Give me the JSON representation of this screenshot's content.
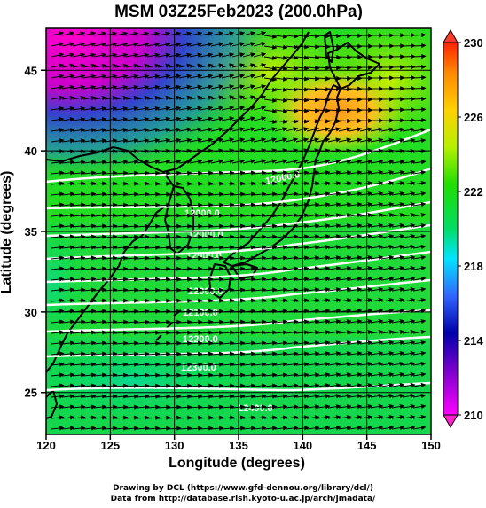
{
  "title": "MSM 03Z25Feb2023 (200.0hPa)",
  "xlabel": "Longitude (degrees)",
  "ylabel": "Latitude  (degrees)",
  "credits": {
    "line1": "Drawing by DCL (https://www.gfd-dennou.org/library/dcl/)",
    "line2": "Data from http://database.rish.kyoto-u.ac.jp/arch/jmadata/"
  },
  "chart_data": {
    "type": "heatmap",
    "xlim": [
      120,
      150
    ],
    "ylim": [
      22.4,
      47.6
    ],
    "xticks": [
      "120",
      "125",
      "130",
      "135",
      "140",
      "145",
      "150"
    ],
    "yticks": [
      "25",
      "30",
      "35",
      "40",
      "45"
    ],
    "colorbar": {
      "min": 210,
      "max": 230,
      "tick_labels": [
        "210",
        "214",
        "218",
        "222",
        "226",
        "230"
      ],
      "colors": [
        "#ff00ff",
        "#0000aa",
        "#3366ff",
        "#00e5ff",
        "#00dd33",
        "#33dd00",
        "#c8f000",
        "#ffd000",
        "#ff8800",
        "#ff3300"
      ]
    },
    "contours": [
      {
        "label": "12000.0",
        "lat": 40.7
      },
      {
        "label": "12000.0",
        "lat": 38.3
      },
      {
        "label": "12000.0",
        "lat": 36.6
      },
      {
        "label": "12000.0",
        "lat": 34.6
      },
      {
        "label": "12000.0",
        "lat": 33.0
      },
      {
        "label": "12100.0",
        "lat": 31.4
      },
      {
        "label": "12200.0",
        "lat": 29.6
      },
      {
        "label": "12300.0",
        "lat": 27.5
      },
      {
        "label": "12400.0",
        "lat": 24.5
      }
    ],
    "wind": "westerly vectors"
  }
}
